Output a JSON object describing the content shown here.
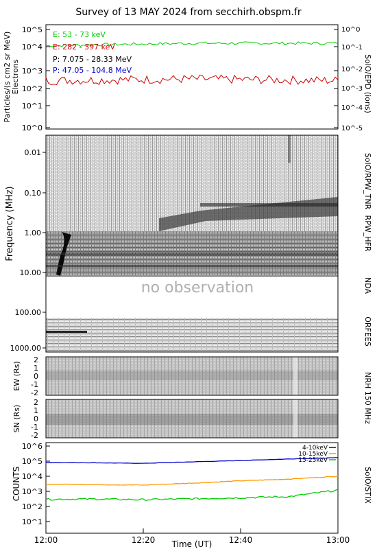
{
  "title": "Survey of 13 MAY 2024 from secchirh.obspm.fr",
  "xlabel": "Time (UT)",
  "x_ticks": [
    "12:00",
    "12:20",
    "12:40",
    "13:00"
  ],
  "panels": {
    "epd": {
      "ylabel_left_1": "Particles/(s cm2 sr MeV)",
      "ylabel_left_2": "Electrons",
      "ylabel_right": "SolO/EPD (ions)",
      "left_ticks": [
        "10^5",
        "10^4",
        "10^3",
        "10^2",
        "10^1",
        "10^0"
      ],
      "right_ticks": [
        "10^0",
        "10^-1",
        "10^-2",
        "10^-3",
        "10^-4",
        "10^-5"
      ],
      "legend": [
        {
          "text": "E: 53 - 73 keV",
          "color": "#00cc00"
        },
        {
          "text": "E: 282 - 397 keV",
          "color": "#cc0000"
        },
        {
          "text": "P: 7.075 - 28.33 MeV",
          "color": "#000000"
        },
        {
          "text": "P: 47.05 - 104.8 MeV",
          "color": "#0000cc"
        }
      ]
    },
    "radio": {
      "ylabel": "Frequency (MHz)",
      "ticks": [
        "0.01",
        "0.10",
        "1.00",
        "10.00",
        "100.00",
        "1000.00"
      ],
      "label_tnr": "SolO/RPW_TNR",
      "label_hfr": "RPW_HFR",
      "label_nda": "NDA",
      "label_orfees": "ORFEES",
      "no_observation": "no observation"
    },
    "nrh": {
      "ew_label": "EW (Rs)",
      "sn_label": "SN (Rs)",
      "ticks": [
        "2",
        "1",
        "0",
        "-1",
        "-2"
      ],
      "right_label": "NRH 150 MHz"
    },
    "stix": {
      "ylabel": "COUNTS",
      "right_label": "SolO/STIX",
      "ticks": [
        "10^6",
        "10^5",
        "10^4",
        "10^3",
        "10^2",
        "10^1"
      ],
      "legend": [
        {
          "text": "4-10keV",
          "color": "#0000cc"
        },
        {
          "text": "10-15keV",
          "color": "#ff9900"
        },
        {
          "text": "15-25keV",
          "color": "#00cc00"
        }
      ]
    }
  },
  "chart_data": [
    {
      "type": "line",
      "title": "",
      "x": [
        "12:00",
        "13:00"
      ],
      "ylabel": "Particles/(s cm2 sr MeV) Electrons",
      "yscale": "log",
      "ylim": [
        0.5,
        100000
      ],
      "series": [
        {
          "name": "E: 53 - 73 keV",
          "color": "#00cc00",
          "values_approx": {
            "start": 15000,
            "mid": 20000,
            "end": 20000
          }
        },
        {
          "name": "E: 282 - 397 keV",
          "color": "#cc0000",
          "values_approx": {
            "start": 250,
            "mid": 300,
            "end": 250
          }
        }
      ]
    },
    {
      "type": "line",
      "title": "",
      "xlabel": "Time (UT)",
      "ylabel": "COUNTS",
      "yscale": "log",
      "ylim": [
        10,
        1500000
      ],
      "x": [
        "12:00",
        "12:10",
        "12:20",
        "12:30",
        "12:40",
        "12:50",
        "13:00"
      ],
      "series": [
        {
          "name": "4-10keV",
          "color": "#0000cc",
          "values": [
            80000,
            78000,
            72000,
            90000,
            110000,
            140000,
            170000
          ]
        },
        {
          "name": "10-15keV",
          "color": "#ff9900",
          "values": [
            3000,
            2800,
            2600,
            3500,
            5000,
            6500,
            10000
          ]
        },
        {
          "name": "15-25keV",
          "color": "#00cc00",
          "values": [
            300,
            310,
            280,
            320,
            380,
            450,
            1200
          ]
        }
      ]
    }
  ]
}
